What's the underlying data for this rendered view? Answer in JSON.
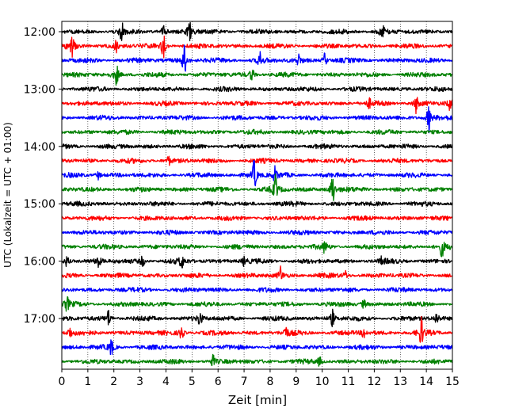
{
  "chart_data": {
    "type": "line",
    "subtype": "helicorder",
    "xlabel": "Zeit  [min]",
    "ylabel": "UTC (Lokalzeit = UTC + 01:00)",
    "xlim": [
      0,
      15
    ],
    "x_ticks": [
      "0",
      "1",
      "2",
      "3",
      "4",
      "5",
      "6",
      "7",
      "8",
      "9",
      "10",
      "11",
      "12",
      "13",
      "14",
      "15"
    ],
    "y_ticks": [
      "12:00",
      "13:00",
      "14:00",
      "15:00",
      "16:00",
      "17:00"
    ],
    "grid": "vertical dotted lines at each minute",
    "trace_interval_minutes": 15,
    "trace_colors": [
      "#000000",
      "#ff0000",
      "#0000ff",
      "#008000"
    ],
    "traces": [
      {
        "start": "12:00",
        "color": "#000000",
        "events": [
          {
            "x": 2.3,
            "amp": 0.6
          },
          {
            "x": 4.9,
            "amp": 1.0
          },
          {
            "x": 12.3,
            "amp": 0.6
          },
          {
            "x": 3.9,
            "amp": 0.4
          }
        ]
      },
      {
        "start": "12:15",
        "color": "#ff0000",
        "events": [
          {
            "x": 0.4,
            "amp": 0.7
          },
          {
            "x": 3.9,
            "amp": 0.8
          },
          {
            "x": 2.1,
            "amp": 0.4
          }
        ]
      },
      {
        "start": "12:30",
        "color": "#0000ff",
        "events": [
          {
            "x": 4.7,
            "amp": 1.2
          },
          {
            "x": 7.6,
            "amp": 0.6
          },
          {
            "x": 10.1,
            "amp": 0.5
          },
          {
            "x": 9.1,
            "amp": 0.4
          }
        ]
      },
      {
        "start": "12:45",
        "color": "#008000",
        "events": [
          {
            "x": 2.1,
            "amp": 0.7
          },
          {
            "x": 7.3,
            "amp": 0.5
          }
        ]
      },
      {
        "start": "13:00",
        "color": "#000000",
        "events": []
      },
      {
        "start": "13:15",
        "color": "#ff0000",
        "events": [
          {
            "x": 11.8,
            "amp": 0.3
          },
          {
            "x": 13.6,
            "amp": 0.6
          },
          {
            "x": 14.9,
            "amp": 0.4
          }
        ]
      },
      {
        "start": "13:30",
        "color": "#0000ff",
        "events": [
          {
            "x": 14.1,
            "amp": 1.0
          }
        ]
      },
      {
        "start": "13:45",
        "color": "#008000",
        "events": []
      },
      {
        "start": "14:00",
        "color": "#000000",
        "events": []
      },
      {
        "start": "14:15",
        "color": "#ff0000",
        "events": [
          {
            "x": 4.1,
            "amp": 0.3
          }
        ]
      },
      {
        "start": "14:30",
        "color": "#0000ff",
        "events": [
          {
            "x": 7.4,
            "amp": 1.2
          },
          {
            "x": 8.2,
            "amp": 0.6
          },
          {
            "x": 1.4,
            "amp": 0.3
          }
        ]
      },
      {
        "start": "14:45",
        "color": "#008000",
        "events": [
          {
            "x": 8.2,
            "amp": 1.0
          },
          {
            "x": 10.4,
            "amp": 1.2
          }
        ]
      },
      {
        "start": "15:00",
        "color": "#000000",
        "events": []
      },
      {
        "start": "15:15",
        "color": "#ff0000",
        "events": []
      },
      {
        "start": "15:30",
        "color": "#0000ff",
        "events": []
      },
      {
        "start": "15:45",
        "color": "#008000",
        "events": [
          {
            "x": 10.1,
            "amp": 0.4
          },
          {
            "x": 14.6,
            "amp": 0.7
          }
        ]
      },
      {
        "start": "16:00",
        "color": "#000000",
        "events": [
          {
            "x": 1.4,
            "amp": 0.5
          },
          {
            "x": 3.1,
            "amp": 0.4
          },
          {
            "x": 4.6,
            "amp": 0.5
          },
          {
            "x": 0.2,
            "amp": 0.4
          },
          {
            "x": 7.0,
            "amp": 0.3
          },
          {
            "x": 12.3,
            "amp": 0.3
          }
        ]
      },
      {
        "start": "16:15",
        "color": "#ff0000",
        "events": [
          {
            "x": 8.4,
            "amp": 0.6
          },
          {
            "x": 10.9,
            "amp": 0.3
          }
        ]
      },
      {
        "start": "16:30",
        "color": "#0000ff",
        "events": []
      },
      {
        "start": "16:45",
        "color": "#008000",
        "events": [
          {
            "x": 0.2,
            "amp": 0.5
          },
          {
            "x": 11.6,
            "amp": 0.3
          }
        ]
      },
      {
        "start": "17:00",
        "color": "#000000",
        "events": [
          {
            "x": 1.8,
            "amp": 0.6
          },
          {
            "x": 5.3,
            "amp": 0.6
          },
          {
            "x": 10.4,
            "amp": 0.6
          },
          {
            "x": 14.4,
            "amp": 0.4
          }
        ]
      },
      {
        "start": "17:15",
        "color": "#ff0000",
        "events": [
          {
            "x": 4.6,
            "amp": 0.6
          },
          {
            "x": 8.6,
            "amp": 0.5
          },
          {
            "x": 13.8,
            "amp": 1.0
          },
          {
            "x": 0.3,
            "amp": 0.4
          },
          {
            "x": 11.6,
            "amp": 0.4
          }
        ]
      },
      {
        "start": "17:30",
        "color": "#0000ff",
        "events": [
          {
            "x": 1.9,
            "amp": 0.6
          }
        ]
      },
      {
        "start": "17:45",
        "color": "#008000",
        "events": [
          {
            "x": 5.8,
            "amp": 0.4
          },
          {
            "x": 9.9,
            "amp": 0.3
          }
        ]
      }
    ]
  }
}
